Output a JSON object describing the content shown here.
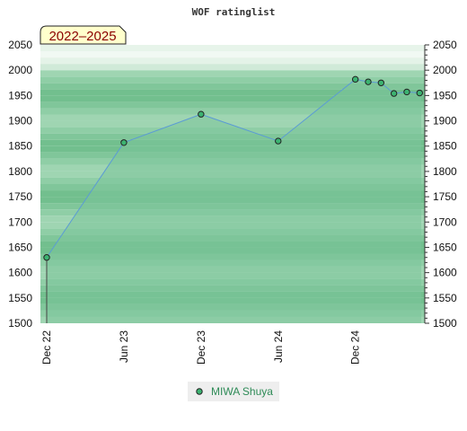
{
  "chart_data": {
    "type": "area",
    "title": "WOF ratinglist",
    "range_label": "2022–2025",
    "ylim": [
      1500,
      2050
    ],
    "yticks": [
      1500,
      1550,
      1600,
      1650,
      1700,
      1750,
      1800,
      1850,
      1900,
      1950,
      2000,
      2050
    ],
    "y_axes": "left and right",
    "x_tick_labels": [
      "Dec 22",
      "Jun 23",
      "Dec 23",
      "Jun 24",
      "Dec 24"
    ],
    "x_months": [
      "2022-12",
      "2023-06",
      "2023-12",
      "2024-06",
      "2024-12"
    ],
    "series": [
      {
        "name": "MIWA Shuya",
        "color": "#5b9bd5",
        "fill": "#7cc49a",
        "marker_color": "#3cb371",
        "x": [
          "2022-12",
          "2023-06",
          "2023-12",
          "2024-06",
          "2024-12",
          "2025-01",
          "2025-02",
          "2025-03",
          "2025-04",
          "2025-05"
        ],
        "values": [
          1630,
          1857,
          1913,
          1860,
          1982,
          1977,
          1975,
          1954,
          1957,
          1955
        ]
      }
    ],
    "legend": "bottom-center",
    "grid": "alternating horizontal green bands"
  }
}
